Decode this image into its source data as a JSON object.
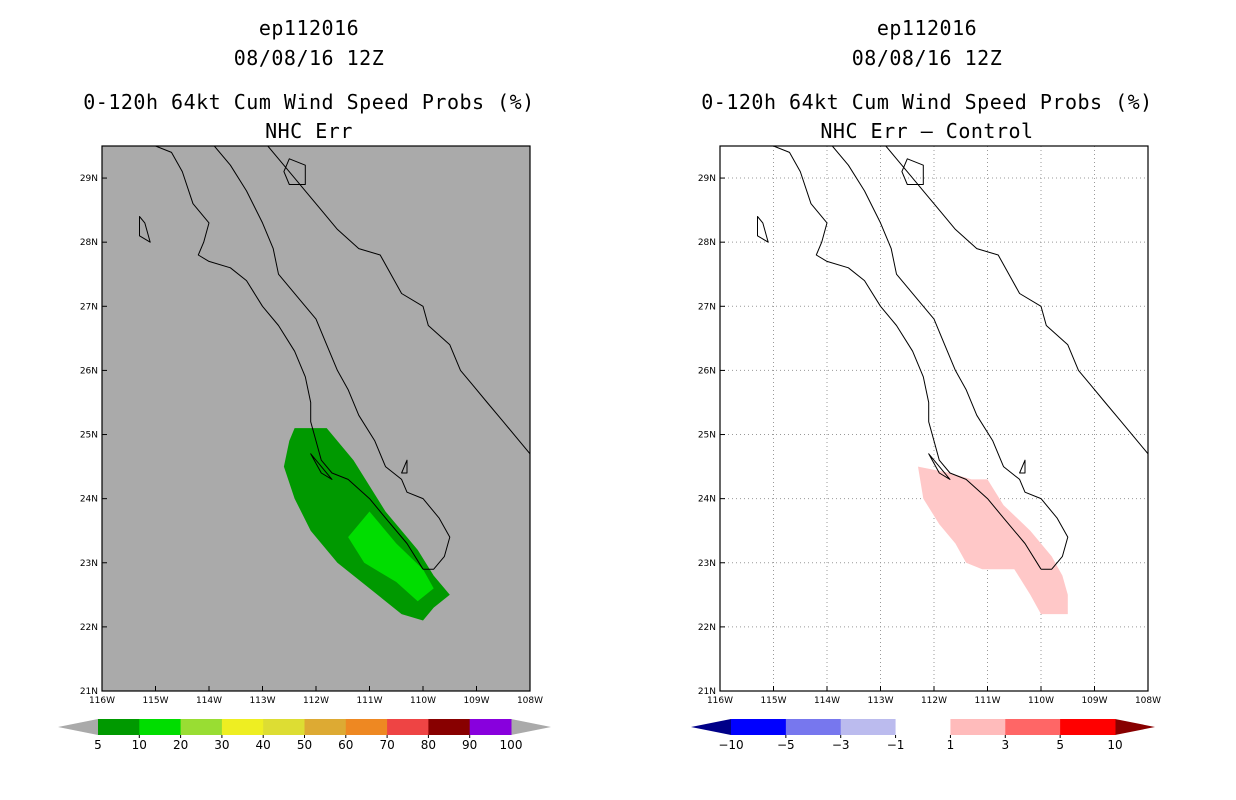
{
  "panels": [
    {
      "title_lines": [
        "ep112016",
        "08/08/16 12Z",
        "0-120h 64kt Cum Wind Speed Probs (%)",
        "NHC Err"
      ],
      "background": "#aaaaaa",
      "colorbar": {
        "colors": [
          "#009900",
          "#00dd00",
          "#99dd33",
          "#eeee22",
          "#dddd33",
          "#ddaa33",
          "#ee8822",
          "#ee4444",
          "#880000",
          "#8800dd"
        ],
        "labels": [
          "5",
          "10",
          "20",
          "30",
          "40",
          "50",
          "60",
          "70",
          "80",
          "90",
          "100"
        ],
        "low_arrow": "#aaaaaa",
        "high_arrow": "#aaaaaa"
      }
    },
    {
      "title_lines": [
        "ep112016",
        "08/08/16 12Z",
        "0-120h 64kt Cum Wind Speed Probs (%)",
        "NHC Err – Control"
      ],
      "background": "#ffffff",
      "colorbar": {
        "colors": [
          "#0000ff",
          "#7777ee",
          "#bbbbee",
          "#ffffff",
          "#ffbbbb",
          "#ff6666",
          "#ff0000"
        ],
        "labels": [
          "−10",
          "−5",
          "−3",
          "−1",
          "1",
          "3",
          "5",
          "10"
        ],
        "low_arrow": "#000088",
        "high_arrow": "#880000"
      }
    }
  ],
  "axes": {
    "lon_labels": [
      "116W",
      "115W",
      "114W",
      "113W",
      "112W",
      "111W",
      "110W",
      "109W",
      "108W"
    ],
    "lat_labels": [
      "21N",
      "22N",
      "23N",
      "24N",
      "25N",
      "26N",
      "27N",
      "28N",
      "29N"
    ]
  },
  "prob_field": {
    "outer_color": "#009900",
    "inner_color": "#00dd00",
    "outer_outline_lonlat": [
      [
        -112.4,
        25.1
      ],
      [
        -111.8,
        25.1
      ],
      [
        -111.3,
        24.6
      ],
      [
        -110.7,
        23.8
      ],
      [
        -110.1,
        23.2
      ],
      [
        -109.8,
        22.8
      ],
      [
        -109.5,
        22.5
      ],
      [
        -109.8,
        22.3
      ],
      [
        -110.0,
        22.1
      ],
      [
        -110.4,
        22.2
      ],
      [
        -111.0,
        22.6
      ],
      [
        -111.6,
        23.0
      ],
      [
        -112.1,
        23.5
      ],
      [
        -112.4,
        24.0
      ],
      [
        -112.6,
        24.5
      ],
      [
        -112.5,
        24.9
      ]
    ],
    "inner_outline_lonlat": [
      [
        -111.0,
        23.8
      ],
      [
        -110.5,
        23.3
      ],
      [
        -110.0,
        22.9
      ],
      [
        -109.8,
        22.6
      ],
      [
        -110.1,
        22.4
      ],
      [
        -110.5,
        22.7
      ],
      [
        -111.1,
        23.0
      ],
      [
        -111.4,
        23.4
      ]
    ]
  },
  "diff_field": {
    "color": "#ffc8c8",
    "outline_lonlat": [
      [
        -112.3,
        24.5
      ],
      [
        -111.7,
        24.4
      ],
      [
        -111.3,
        24.3
      ],
      [
        -111.0,
        24.3
      ],
      [
        -110.7,
        23.9
      ],
      [
        -110.2,
        23.5
      ],
      [
        -109.8,
        23.1
      ],
      [
        -109.6,
        22.8
      ],
      [
        -109.5,
        22.5
      ],
      [
        -109.5,
        22.2
      ],
      [
        -110.0,
        22.2
      ],
      [
        -110.2,
        22.5
      ],
      [
        -110.5,
        22.9
      ],
      [
        -111.1,
        22.9
      ],
      [
        -111.4,
        23.0
      ],
      [
        -111.6,
        23.3
      ],
      [
        -111.9,
        23.6
      ],
      [
        -112.2,
        24.0
      ]
    ]
  }
}
